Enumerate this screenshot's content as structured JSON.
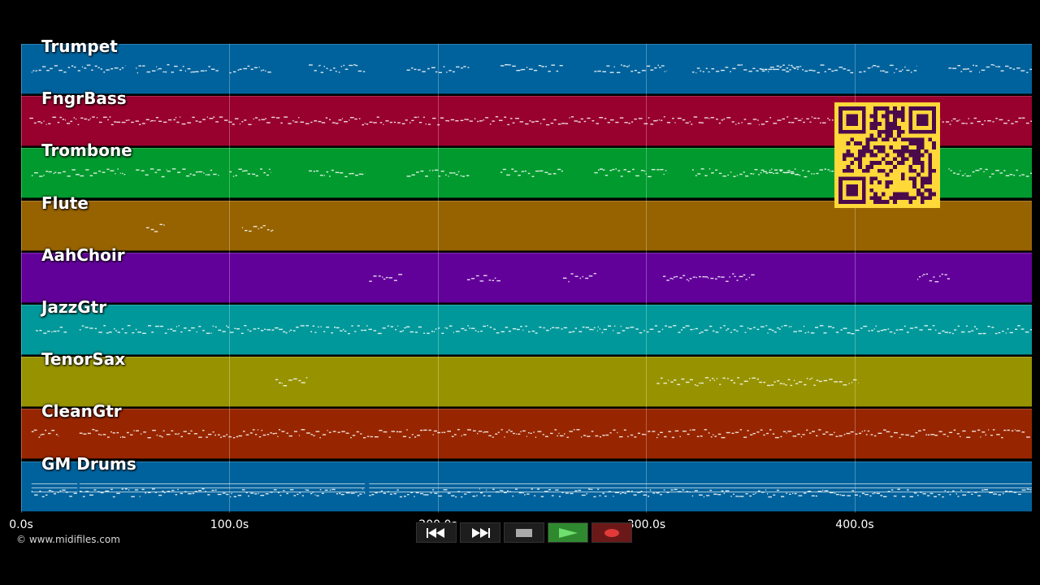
{
  "timeline": {
    "duration_s": 485,
    "tick_labels": [
      "0.0s",
      "100.0s",
      "200.0s",
      "300.0s",
      "400.0s"
    ],
    "tick_values_s": [
      0,
      100,
      200,
      300,
      400
    ]
  },
  "tracks": [
    {
      "name": "Trumpet",
      "color": "#00629c",
      "segments": [
        [
          5,
          50
        ],
        [
          55,
          70
        ],
        [
          70,
          95
        ],
        [
          100,
          120
        ],
        [
          138,
          165
        ],
        [
          185,
          215
        ],
        [
          230,
          260
        ],
        [
          275,
          310
        ],
        [
          322,
          400
        ],
        [
          355,
          373
        ],
        [
          402,
          430
        ],
        [
          445,
          485
        ]
      ]
    },
    {
      "name": "FngrBass",
      "color": "#98002e",
      "segments": [
        [
          4,
          485
        ]
      ]
    },
    {
      "name": "Trombone",
      "color": "#009a2e",
      "segments": [
        [
          5,
          50
        ],
        [
          55,
          70
        ],
        [
          70,
          95
        ],
        [
          100,
          120
        ],
        [
          138,
          165
        ],
        [
          185,
          215
        ],
        [
          230,
          260
        ],
        [
          275,
          310
        ],
        [
          322,
          400
        ],
        [
          355,
          373
        ],
        [
          445,
          485
        ]
      ]
    },
    {
      "name": "Flute",
      "color": "#976300",
      "segments": [
        [
          60,
          69
        ],
        [
          106,
          121
        ]
      ]
    },
    {
      "name": "AahChoir",
      "color": "#62009a",
      "segments": [
        [
          167,
          183
        ],
        [
          214,
          230
        ],
        [
          260,
          276
        ],
        [
          308,
          352
        ],
        [
          430,
          446
        ]
      ]
    },
    {
      "name": "JazzGtr",
      "color": "#00989a",
      "segments": [
        [
          7,
          22
        ],
        [
          28,
          485
        ]
      ]
    },
    {
      "name": "TenorSax",
      "color": "#979300",
      "segments": [
        [
          122,
          138
        ],
        [
          305,
          402
        ]
      ]
    },
    {
      "name": "CleanGtr",
      "color": "#972600",
      "segments": [
        [
          5,
          18
        ],
        [
          28,
          485
        ]
      ]
    },
    {
      "name": "GM Drums",
      "color": "#00629c",
      "segments": [
        [
          5,
          27
        ],
        [
          28,
          165
        ],
        [
          167,
          485
        ]
      ]
    }
  ],
  "player": {
    "buttons": [
      {
        "name": "rewind",
        "icon": "rewind-icon"
      },
      {
        "name": "fast-forward",
        "icon": "fast-forward-icon"
      },
      {
        "name": "stop",
        "icon": "stop-icon"
      },
      {
        "name": "play",
        "icon": "play-icon"
      },
      {
        "name": "record",
        "icon": "record-icon"
      }
    ]
  },
  "credit": "© www.midifiles.com",
  "qr": {
    "bg": "#ffd83a",
    "fg": "#4b0b4b"
  }
}
